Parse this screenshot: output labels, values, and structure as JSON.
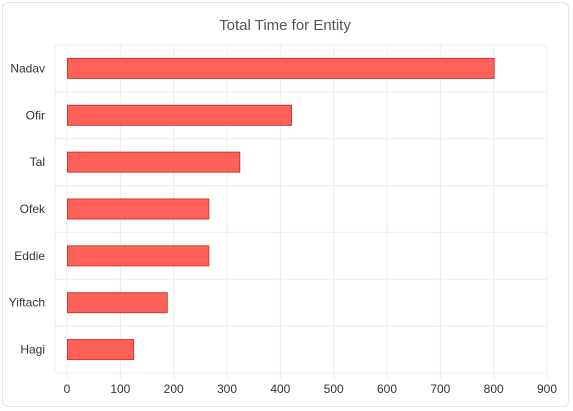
{
  "chart_data": {
    "type": "bar",
    "orientation": "horizontal",
    "title": "Total Time for Entity",
    "categories": [
      "Nadav",
      "Ofir",
      "Tal",
      "Ofek",
      "Eddie",
      "Yiftach",
      "Hagi"
    ],
    "values": [
      800,
      420,
      323,
      265,
      265,
      187,
      124
    ],
    "xlim": [
      0,
      900
    ],
    "xticks": [
      "0",
      "100",
      "200",
      "300",
      "400",
      "500",
      "600",
      "700",
      "800",
      "900"
    ],
    "grid": true,
    "legend": "none",
    "colors": {
      "bar_fill": "#ff6158",
      "bar_stroke": "#c83c34",
      "grid": "#ececec",
      "axis": "#d0d0d0"
    }
  }
}
